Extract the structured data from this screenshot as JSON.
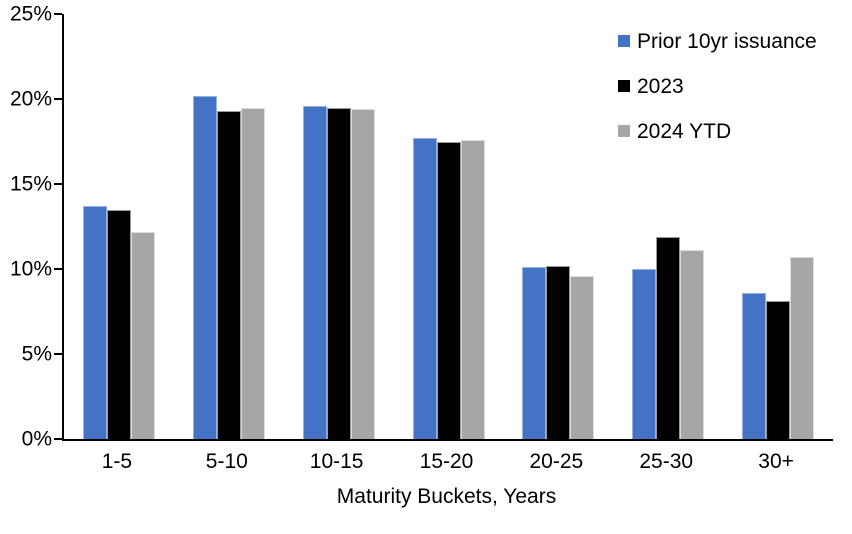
{
  "chart_data": {
    "type": "bar",
    "title": "",
    "xlabel": "Maturity Buckets, Years",
    "ylabel": "",
    "ylim": [
      0,
      25
    ],
    "ytick_values": [
      0,
      5,
      10,
      15,
      20,
      25
    ],
    "ytick_labels": [
      "0%",
      "5%",
      "10%",
      "15%",
      "20%",
      "25%"
    ],
    "grid": false,
    "legend_position": "top-right",
    "categories": [
      "1-5",
      "5-10",
      "10-15",
      "15-20",
      "20-25",
      "25-30",
      "30+"
    ],
    "series": [
      {
        "name": "Prior 10yr issuance",
        "color": "#4472C4",
        "border_color": "#94B3E0",
        "values": [
          13.7,
          20.2,
          19.6,
          17.7,
          10.1,
          10.0,
          8.6
        ]
      },
      {
        "name": "2023",
        "color": "#000000",
        "border_color": "#9B9B9B",
        "values": [
          13.5,
          19.3,
          19.5,
          17.5,
          10.2,
          11.9,
          8.1
        ]
      },
      {
        "name": "2024 YTD",
        "color": "#A6A6A6",
        "border_color": "#DCDCDC",
        "values": [
          12.2,
          19.5,
          19.4,
          17.6,
          9.6,
          11.1,
          10.7
        ]
      }
    ]
  }
}
